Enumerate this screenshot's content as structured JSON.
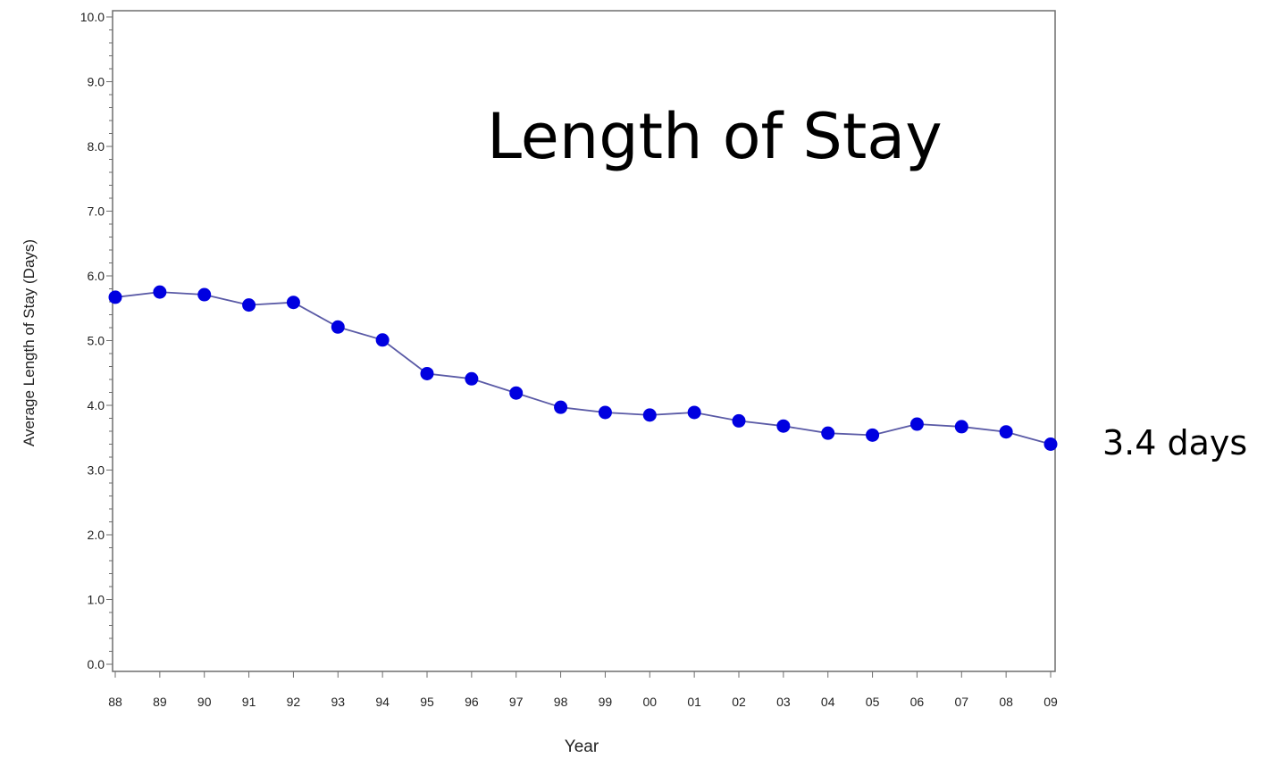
{
  "chart_data": {
    "type": "line",
    "title": "Length of Stay",
    "xlabel": "Year",
    "ylabel": "Average Length of Stay (Days)",
    "ylim": [
      0,
      10
    ],
    "yticks": [
      "0.0",
      "1.0",
      "2.0",
      "3.0",
      "4.0",
      "5.0",
      "6.0",
      "7.0",
      "8.0",
      "9.0",
      "10.0"
    ],
    "categories": [
      "88",
      "89",
      "90",
      "91",
      "92",
      "93",
      "94",
      "95",
      "96",
      "97",
      "98",
      "99",
      "00",
      "01",
      "02",
      "03",
      "04",
      "05",
      "06",
      "07",
      "08",
      "09"
    ],
    "series": [
      {
        "values": [
          5.67,
          5.75,
          5.71,
          5.55,
          5.59,
          5.21,
          5.01,
          4.49,
          4.41,
          4.19,
          3.97,
          3.89,
          3.85,
          3.89,
          3.76,
          3.68,
          3.57,
          3.54,
          3.71,
          3.67,
          3.59,
          3.4
        ],
        "color": "#0000e0",
        "line_color": "#5a5aa6"
      }
    ],
    "annotation": "3.4 days",
    "grid": false,
    "legend": "none"
  }
}
